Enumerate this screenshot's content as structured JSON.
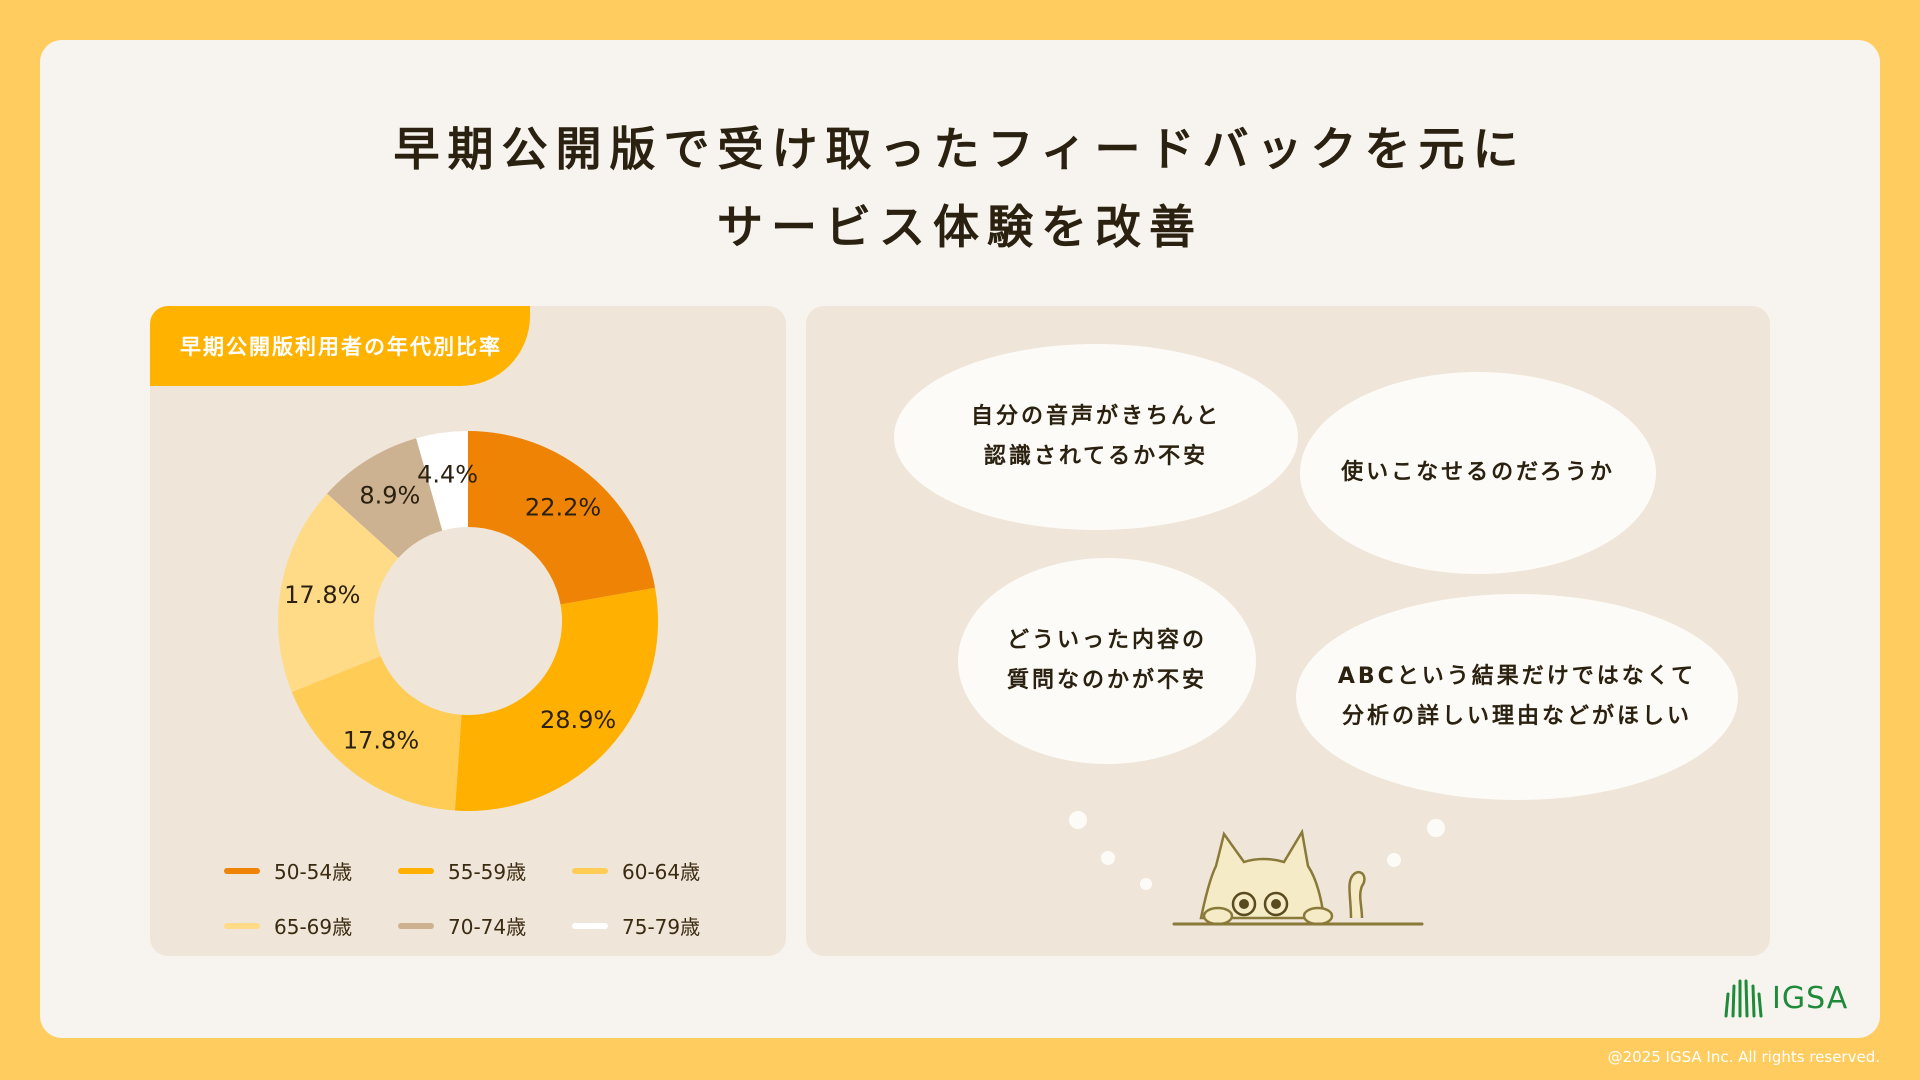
{
  "title": {
    "line1": "早期公開版で受け取ったフィードバックを元に",
    "line2": "サービス体験を改善"
  },
  "chart_panel": {
    "tab_label": "早期公開版利用者の年代別比率"
  },
  "chart_data": {
    "type": "pie",
    "title": "早期公開版利用者の年代別比率",
    "donut": true,
    "categories": [
      "50-54歳",
      "55-59歳",
      "60-64歳",
      "65-69歳",
      "70-74歳",
      "75-79歳"
    ],
    "values": [
      22.2,
      28.9,
      17.8,
      17.8,
      8.9,
      4.4
    ],
    "labels": [
      "22.2%",
      "28.9%",
      "17.8%",
      "17.8%",
      "8.9%",
      "4.4%"
    ],
    "colors": [
      "#EF8306",
      "#FFB000",
      "#FFCC55",
      "#FFDB88",
      "#CDB291",
      "#FFFFFF"
    ],
    "legend_position": "bottom"
  },
  "feedback": {
    "bubble1": [
      "自分の音声がきちんと",
      "認識されてるか不安"
    ],
    "bubble2": [
      "使いこなせるのだろうか"
    ],
    "bubble3": [
      "どういった内容の",
      "質問なのかが不安"
    ],
    "bubble4": [
      "ABCという結果だけではなくて",
      "分析の詳しい理由などがほしい"
    ]
  },
  "logo": {
    "text": "IGSA"
  },
  "footer": {
    "copyright": "@2025 IGSA Inc. All rights reserved."
  }
}
